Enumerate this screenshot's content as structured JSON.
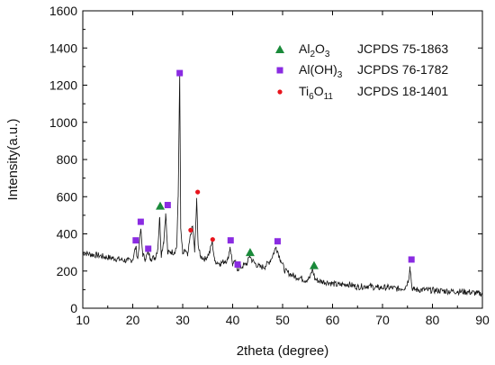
{
  "chart_data": {
    "type": "line",
    "xlabel": "2theta (degree)",
    "ylabel": "Intensity(a.u.)",
    "xlim": [
      10,
      90
    ],
    "ylim": [
      0,
      1600
    ],
    "xticks": [
      10,
      20,
      30,
      40,
      50,
      60,
      70,
      80,
      90
    ],
    "yticks": [
      0,
      200,
      400,
      600,
      800,
      1000,
      1200,
      1400,
      1600
    ],
    "grid": false,
    "legend_position": "top-right",
    "pattern": {
      "x": [
        10.0,
        11.5,
        13.0,
        14.5,
        16.0,
        17.5,
        19.0,
        20.0,
        20.6,
        21.0,
        21.6,
        22.0,
        22.5,
        23.1,
        23.6,
        24.5,
        25.0,
        25.4,
        25.7,
        26.2,
        26.6,
        27.0,
        27.6,
        28.3,
        28.8,
        29.1,
        29.4,
        29.6,
        30.0,
        30.6,
        31.0,
        31.6,
        32.0,
        32.4,
        32.8,
        33.1,
        33.5,
        34.5,
        35.4,
        35.9,
        36.4,
        37.5,
        38.5,
        39.0,
        39.5,
        40.0,
        40.6,
        41.0,
        41.5,
        42.0,
        43.0,
        43.4,
        43.8,
        44.5,
        45.5,
        46.5,
        47.5,
        48.1,
        48.7,
        49.1,
        49.6,
        50.5,
        51.5,
        52.5,
        53.5,
        54.5,
        55.5,
        56.0,
        56.5,
        57.5,
        59.0,
        61.0,
        63.0,
        65.0,
        67.0,
        69.0,
        71.0,
        73.0,
        74.5,
        75.2,
        75.5,
        75.9,
        76.3,
        77.0,
        79.0,
        81.0,
        83.0,
        85.0,
        87.0,
        89.0,
        90.0
      ],
      "y": [
        300,
        290,
        285,
        275,
        270,
        262,
        255,
        262,
        330,
        265,
        425,
        290,
        265,
        300,
        268,
        272,
        320,
        490,
        285,
        360,
        510,
        295,
        305,
        300,
        330,
        600,
        1265,
        430,
        290,
        310,
        280,
        400,
        440,
        300,
        580,
        340,
        280,
        265,
        300,
        360,
        255,
        240,
        255,
        260,
        330,
        235,
        245,
        210,
        220,
        225,
        245,
        285,
        260,
        240,
        220,
        225,
        255,
        290,
        330,
        300,
        260,
        200,
        185,
        170,
        165,
        150,
        165,
        210,
        155,
        145,
        140,
        125,
        130,
        115,
        120,
        110,
        112,
        105,
        110,
        150,
        225,
        110,
        100,
        100,
        98,
        95,
        92,
        90,
        88,
        80,
        78
      ]
    },
    "series": [
      {
        "name": "Al2O3",
        "color": "#1a8a3a",
        "marker": "triangle",
        "points": [
          [
            25.5,
            550
          ],
          [
            43.5,
            300
          ],
          [
            56.3,
            230
          ]
        ]
      },
      {
        "name": "Al(OH)3",
        "color": "#8a2be2",
        "marker": "square",
        "points": [
          [
            20.6,
            365
          ],
          [
            21.6,
            465
          ],
          [
            23.1,
            320
          ],
          [
            27.0,
            555
          ],
          [
            29.4,
            1265
          ],
          [
            39.6,
            365
          ],
          [
            41.0,
            235
          ],
          [
            49.0,
            360
          ],
          [
            75.8,
            262
          ]
        ]
      },
      {
        "name": "Ti6O11",
        "color": "#e8141c",
        "marker": "circle",
        "points": [
          [
            31.6,
            420
          ],
          [
            33.0,
            625
          ],
          [
            36.0,
            370
          ]
        ]
      }
    ],
    "legend": [
      {
        "base": "Al",
        "sub": "2",
        "base2": "O",
        "sub2": "3",
        "ref": "JCPDS 75-1863"
      },
      {
        "base": "Al(OH)",
        "sub": "3",
        "base2": "",
        "sub2": "",
        "ref": "JCPDS 76-1782"
      },
      {
        "base": "Ti",
        "sub": "6",
        "base2": "O",
        "sub2": "11",
        "ref": "JCPDS 18-1401"
      }
    ]
  }
}
